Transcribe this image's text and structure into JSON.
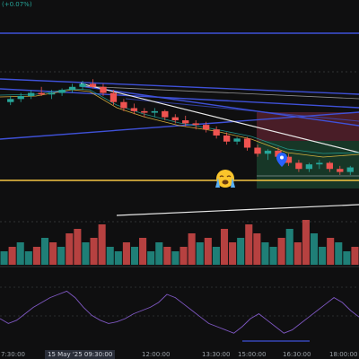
{
  "header": {
    "change_percent": "(+0.07%)"
  },
  "time_axis": {
    "labels": [
      "7:30:00",
      "15 May '25  09:30:00",
      "12:00:00",
      "13:30:00",
      "15:00:00",
      "16:30:00",
      "18:00:00"
    ],
    "highlighted_date": "15 May '25  09:30:00"
  },
  "icons": {
    "crying_emoji": "loudly-crying-face",
    "marker": "map-pin-marker"
  },
  "colors": {
    "background": "#0f0f10",
    "bull": "#26a69a",
    "bear": "#ef5350",
    "trendline_blue": "#3f51d8",
    "trendline_white": "#e8e8e8",
    "support_yellow": "#f5c542",
    "rsi_line": "#7e57c2"
  },
  "chart_data": [
    {
      "type": "candlestick",
      "title": "",
      "candles": [
        [
          100,
          102,
          99,
          101
        ],
        [
          101,
          103,
          100,
          102
        ],
        [
          102,
          104,
          101,
          103
        ],
        [
          103,
          105,
          102,
          102.5
        ],
        [
          102.5,
          104,
          101,
          103
        ],
        [
          103,
          104.5,
          102,
          104
        ],
        [
          104,
          106,
          103,
          105
        ],
        [
          105,
          107,
          104,
          106
        ],
        [
          106,
          107.5,
          104.5,
          105
        ],
        [
          105,
          106,
          102,
          103
        ],
        [
          103,
          104,
          99,
          100
        ],
        [
          100,
          101,
          97,
          98
        ],
        [
          98,
          99.5,
          96,
          97
        ],
        [
          97,
          98,
          95,
          96.5
        ],
        [
          96.5,
          98,
          95,
          97
        ],
        [
          97,
          97.5,
          94,
          95
        ],
        [
          95,
          96,
          93,
          94
        ],
        [
          94,
          95.5,
          92,
          93
        ],
        [
          93,
          94,
          91,
          92.5
        ],
        [
          92.5,
          93.5,
          90,
          91
        ],
        [
          91,
          92,
          88,
          89
        ],
        [
          89,
          90,
          86,
          87
        ],
        [
          87,
          88.5,
          86,
          88
        ],
        [
          88,
          88.5,
          84,
          85
        ],
        [
          85,
          86,
          82,
          83
        ],
        [
          83,
          84.5,
          81,
          84
        ],
        [
          84,
          85,
          81,
          82
        ],
        [
          82,
          83,
          79,
          80
        ],
        [
          80,
          81,
          77,
          78
        ],
        [
          78,
          80,
          77,
          79.5
        ],
        [
          79.5,
          81,
          78,
          80
        ],
        [
          80,
          80.5,
          77,
          78
        ],
        [
          78,
          79,
          76,
          77
        ],
        [
          77,
          79,
          76,
          78.5
        ]
      ]
    },
    {
      "type": "bar",
      "title": "",
      "values": [
        3,
        4,
        5,
        3,
        4,
        6,
        5,
        4,
        7,
        8,
        5,
        6,
        9,
        4,
        3,
        5,
        4,
        6,
        3,
        5,
        4,
        3,
        4,
        7,
        5,
        6,
        4,
        8,
        5,
        6,
        9,
        7,
        5,
        4,
        6,
        8,
        5,
        10,
        7,
        4,
        6,
        5,
        3,
        4
      ],
      "up": [
        1,
        0,
        1,
        1,
        0,
        1,
        0,
        1,
        0,
        0,
        1,
        0,
        0,
        1,
        1,
        0,
        1,
        0,
        1,
        1,
        0,
        1,
        0,
        0,
        1,
        0,
        1,
        0,
        0,
        1,
        0,
        0,
        1,
        1,
        0,
        1,
        0,
        0,
        1,
        1,
        0,
        1,
        1,
        0
      ]
    },
    {
      "type": "line",
      "title": "",
      "values": [
        45,
        42,
        44,
        48,
        52,
        55,
        58,
        60,
        62,
        58,
        52,
        47,
        44,
        42,
        43,
        45,
        48,
        50,
        52,
        55,
        60,
        58,
        54,
        50,
        46,
        42,
        40,
        38,
        36,
        40,
        45,
        48,
        44,
        40,
        36,
        38,
        42,
        46,
        50,
        54,
        58,
        55,
        50,
        46
      ]
    }
  ]
}
